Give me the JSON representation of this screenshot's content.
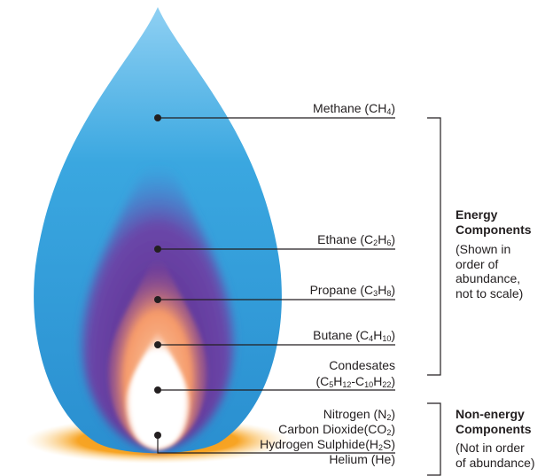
{
  "components": [
    {
      "id": "methane",
      "parts": [
        "Methane (CH",
        "4",
        ")"
      ]
    },
    {
      "id": "ethane",
      "parts": [
        "Ethane (C",
        "2",
        "H",
        "6",
        ")"
      ]
    },
    {
      "id": "propane",
      "parts": [
        "Propane (C",
        "3",
        "H",
        "8",
        ")"
      ]
    },
    {
      "id": "butane",
      "parts": [
        "Butane (C",
        "4",
        "H",
        "10",
        ")"
      ]
    },
    {
      "id": "condesates",
      "line1": "Condesates",
      "parts": [
        "(C",
        "5",
        "H",
        "12",
        "-C",
        "10",
        "H",
        "22",
        ")"
      ]
    },
    {
      "id": "nitrogen",
      "parts": [
        "Nitrogen (N",
        "2",
        ")"
      ]
    },
    {
      "id": "carbon-dioxide",
      "parts": [
        "Carbon Dioxide(CO",
        "2",
        ")"
      ]
    },
    {
      "id": "hydrogen-sulphide",
      "parts": [
        "Hydrogen Sulphide(H",
        "2",
        "S)"
      ]
    },
    {
      "id": "helium",
      "parts": [
        "Helium (He)"
      ]
    }
  ],
  "energy_group": {
    "heading": [
      "Energy",
      "Components"
    ],
    "note": [
      "(Shown in",
      "order of",
      "abundance,",
      "not to scale)"
    ]
  },
  "nonenergy_group": {
    "heading": [
      "Non-energy",
      "Components"
    ],
    "note": [
      "(Not in order",
      "of abundance)"
    ]
  },
  "colors": {
    "flame_outer": "#3aa7e0",
    "flame_purple": "#5a2a8c",
    "flame_orange": "#f7a35a",
    "flame_core": "#ffffff",
    "glow": "#f5a21e",
    "line": "#231f20"
  }
}
